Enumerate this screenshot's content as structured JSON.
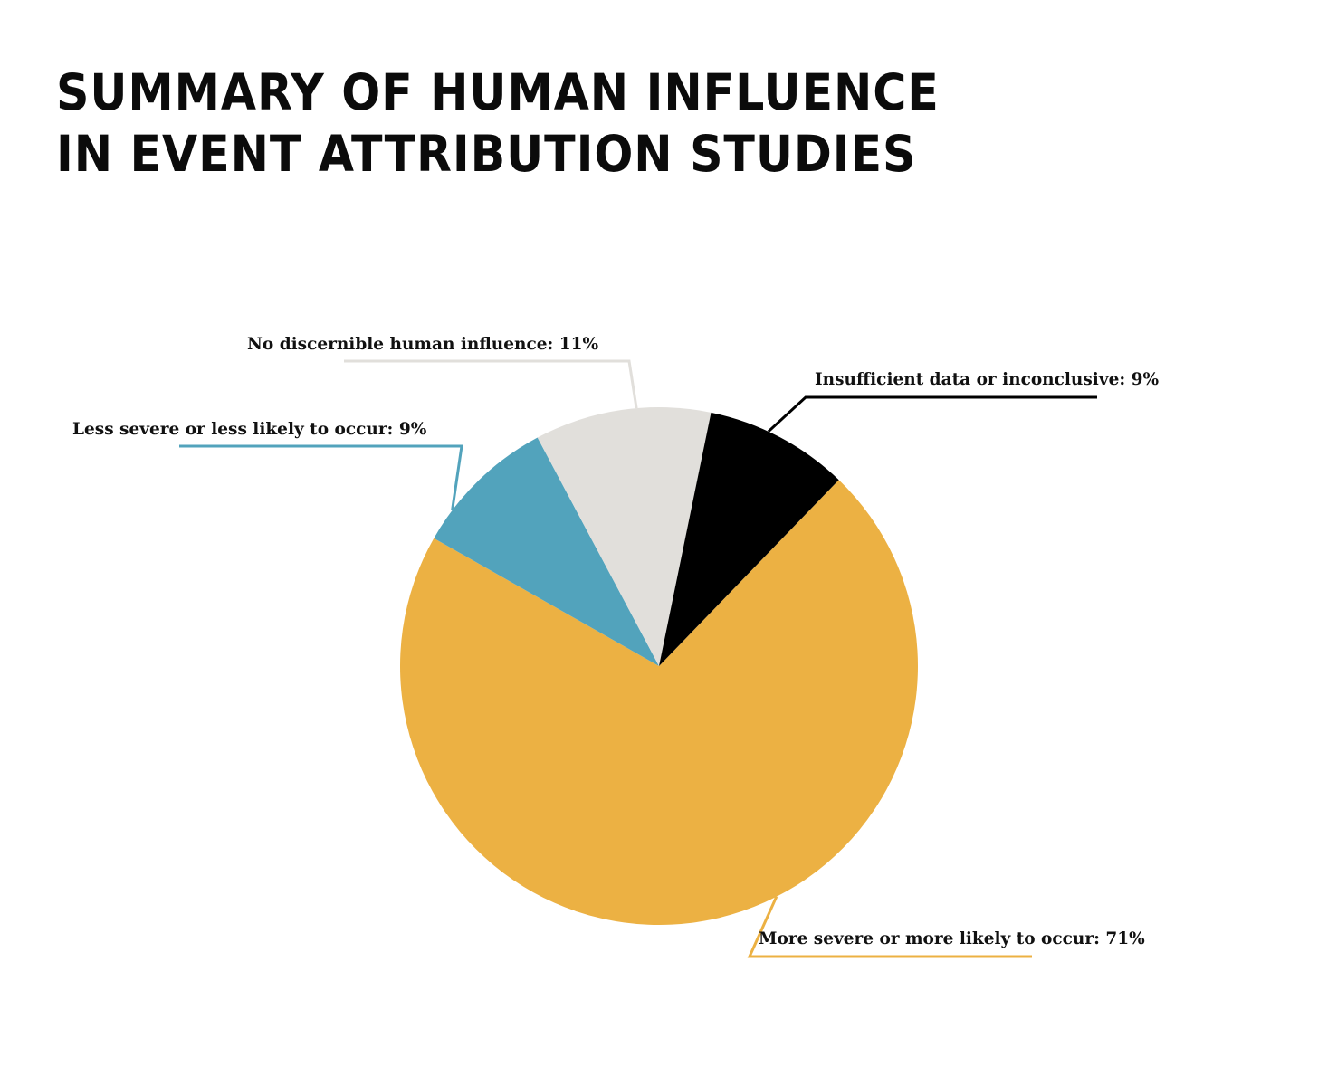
{
  "chart_data": {
    "type": "pie",
    "title_lines": [
      "SUMMARY OF HUMAN INFLUENCE",
      "IN EVENT ATTRIBUTION STUDIES"
    ],
    "start_angle_deg": 44,
    "direction": "clockwise",
    "slices": [
      {
        "label": "More severe or more likely to occur: 71%",
        "value": 71,
        "color": "#ECB143"
      },
      {
        "label": "Less severe or less likely to occur: 9%",
        "value": 9,
        "color": "#52A3BC"
      },
      {
        "label": "No discernible human influence: 11%",
        "value": 11,
        "color": "#E1DFDB"
      },
      {
        "label": "Insufficient data or inconclusive: 9%",
        "value": 9,
        "color": "#000000"
      }
    ]
  }
}
